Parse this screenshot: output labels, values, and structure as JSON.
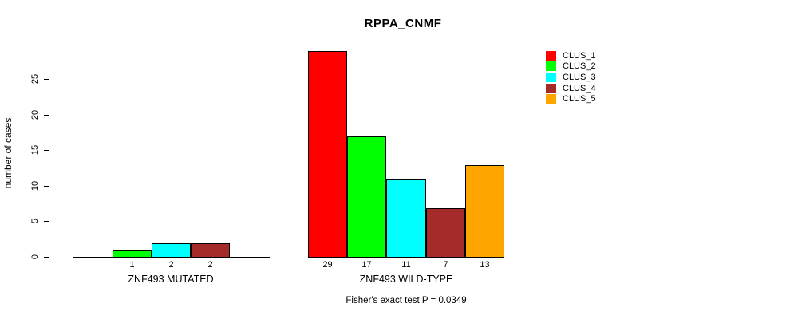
{
  "title": "RPPA_CNMF",
  "footer_note": "Fisher's exact test P = 0.0349",
  "chart_data": {
    "type": "bar",
    "title": "RPPA_CNMF",
    "ylabel": "number of cases",
    "ylim": [
      0,
      25
    ],
    "yticks": [
      0,
      5,
      10,
      15,
      20,
      25
    ],
    "grid": false,
    "legend_position": "top-right",
    "categories": [
      "CLUS_1",
      "CLUS_2",
      "CLUS_3",
      "CLUS_4",
      "CLUS_5"
    ],
    "colors": [
      "#FF0000",
      "#00FF00",
      "#00FFFF",
      "#A52A2A",
      "#FFA500"
    ],
    "groups": [
      {
        "label": "ZNF493 MUTATED",
        "values": [
          0,
          1,
          2,
          2,
          0
        ],
        "bar_labels": [
          "",
          "1",
          "2",
          "2",
          ""
        ]
      },
      {
        "label": "ZNF493 WILD-TYPE",
        "values": [
          29,
          17,
          11,
          7,
          13
        ],
        "bar_labels": [
          "29",
          "17",
          "11",
          "7",
          "13"
        ]
      }
    ],
    "legend": [
      {
        "label": "CLUS_1",
        "color": "#FF0000"
      },
      {
        "label": "CLUS_2",
        "color": "#00FF00"
      },
      {
        "label": "CLUS_3",
        "color": "#00FFFF"
      },
      {
        "label": "CLUS_4",
        "color": "#A52A2A"
      },
      {
        "label": "CLUS_5",
        "color": "#FFA500"
      }
    ],
    "annotation": "Fisher's exact test P = 0.0349"
  }
}
